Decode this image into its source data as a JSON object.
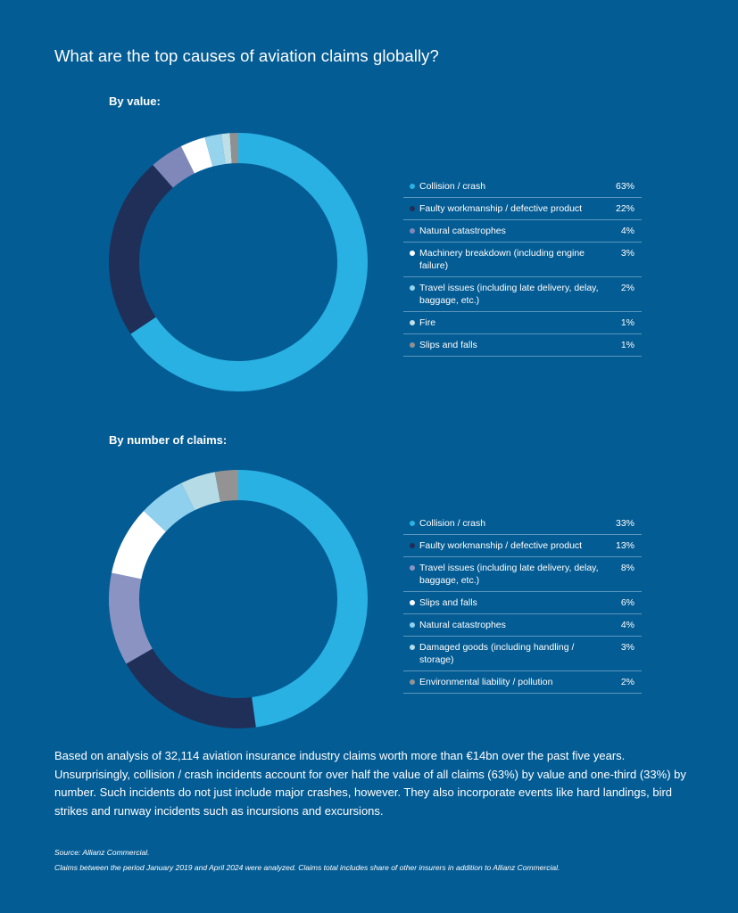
{
  "title": "What are the top causes of aviation claims globally?",
  "chart_data": [
    {
      "type": "pie",
      "title": "By value:",
      "categories": [
        "Collision / crash",
        "Faulty workmanship / defective product",
        "Natural catastrophes",
        "Machinery breakdown (including engine failure)",
        "Travel issues (including late delivery, delay, baggage, etc.)",
        "Fire",
        "Slips and falls"
      ],
      "values": [
        63,
        22,
        4,
        3,
        2,
        1,
        1
      ],
      "value_labels": [
        "63%",
        "22%",
        "4%",
        "3%",
        "2%",
        "1%",
        "1%"
      ],
      "colors": [
        "#29b1e3",
        "#1f2f58",
        "#7f88b9",
        "#ffffff",
        "#96d4ee",
        "#bfdfe8",
        "#909090"
      ],
      "legend_position": "right"
    },
    {
      "type": "pie",
      "title": "By number of claims:",
      "categories": [
        "Collision / crash",
        "Faulty workmanship / defective product",
        "Travel issues (including late delivery, delay, baggage, etc.)",
        "Slips and falls",
        "Natural catastrophes",
        "Damaged goods (including handling / storage)",
        "Environmental liability / pollution"
      ],
      "values": [
        33,
        13,
        8,
        6,
        4,
        3,
        2
      ],
      "value_labels": [
        "33%",
        "13%",
        "8%",
        "6%",
        "4%",
        "3%",
        "2%"
      ],
      "colors": [
        "#29b1e3",
        "#1f2f58",
        "#8b93c3",
        "#ffffff",
        "#8fd0ee",
        "#b5dbe6",
        "#939393"
      ],
      "legend_position": "right"
    }
  ],
  "body_text": "Based on analysis of 32,114 aviation insurance industry claims worth more than €14bn over the past five years. Unsurprisingly, collision / crash incidents account for over half the value of all claims (63%) by value and one-third (33%) by number. Such incidents do not just include major crashes, however. They also incorporate events like hard landings, bird strikes and runway incidents such as incursions and excursions.",
  "source": "Source: Allianz Commercial.",
  "note": "Claims between the period January 2019 and April 2024 were analyzed. Claims total includes share of other insurers in addition to Allianz Commercial."
}
